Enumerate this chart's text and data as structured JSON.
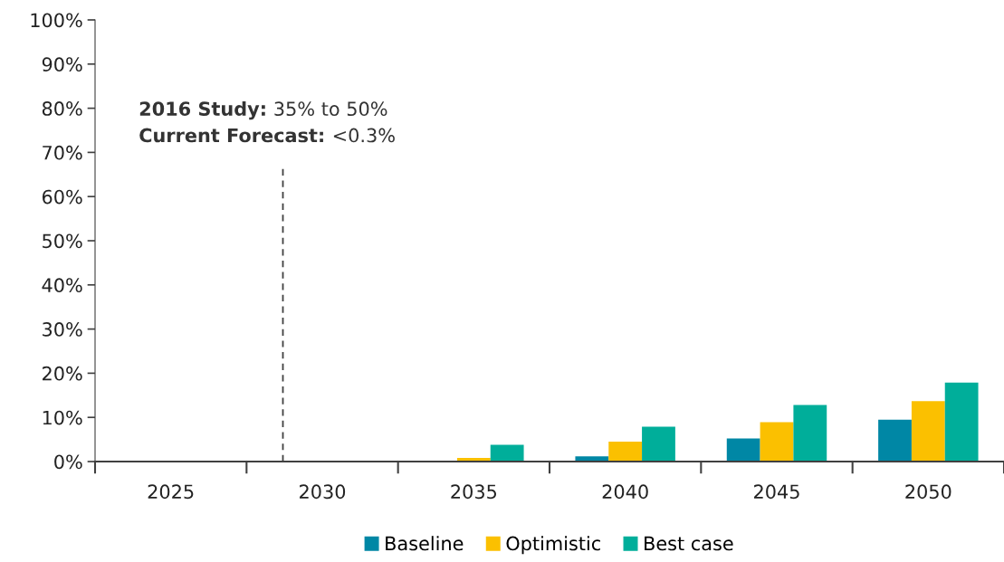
{
  "chart_data": {
    "type": "bar",
    "categories": [
      "2025",
      "2030",
      "2035",
      "2040",
      "2045",
      "2050"
    ],
    "series": [
      {
        "name": "Baseline",
        "color": "#0087a5",
        "values": [
          0,
          0,
          0,
          1.2,
          5.2,
          9.5
        ]
      },
      {
        "name": "Optimistic",
        "color": "#fbc000",
        "values": [
          0,
          0,
          0.8,
          4.5,
          8.9,
          13.7
        ]
      },
      {
        "name": "Best case",
        "color": "#00ae9a",
        "values": [
          0,
          0.2,
          3.8,
          7.9,
          12.8,
          17.9
        ]
      }
    ],
    "ylim": [
      0,
      100
    ],
    "yticks": [
      {
        "value": 0,
        "label": "0%"
      },
      {
        "value": 10,
        "label": "10%"
      },
      {
        "value": 20,
        "label": "20%"
      },
      {
        "value": 30,
        "label": "30%"
      },
      {
        "value": 40,
        "label": "40%"
      },
      {
        "value": 50,
        "label": "50%"
      },
      {
        "value": 60,
        "label": "60%"
      },
      {
        "value": 70,
        "label": "70%"
      },
      {
        "value": 80,
        "label": "80%"
      },
      {
        "value": 90,
        "label": "90%"
      },
      {
        "value": 100,
        "label": "100%"
      }
    ],
    "annotations": [
      "2016 Study: 35% to 50%",
      "Current Forecast: <0.3%"
    ],
    "grid": false,
    "legend": "bottom"
  }
}
